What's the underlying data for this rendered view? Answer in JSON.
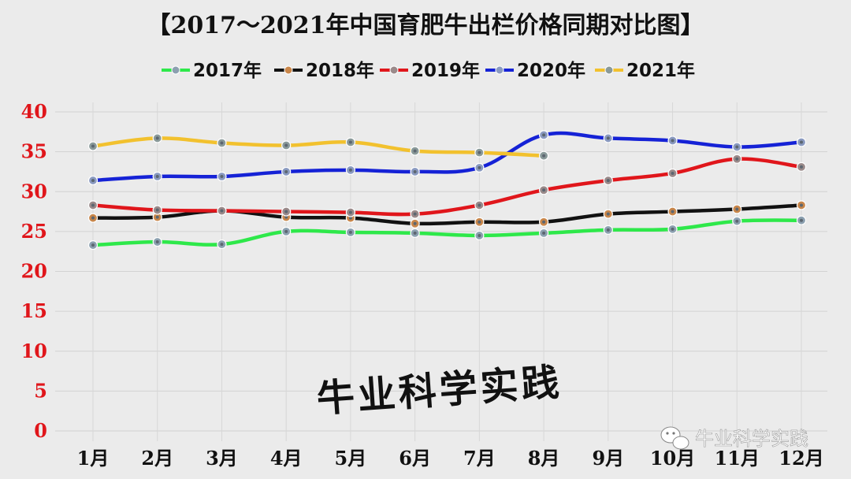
{
  "chart_data": {
    "type": "line",
    "title": "【2017～2021年中国育肥牛出栏价格同期对比图】",
    "categories": [
      "1月",
      "2月",
      "3月",
      "4月",
      "5月",
      "6月",
      "7月",
      "8月",
      "9月",
      "10月",
      "11月",
      "12月"
    ],
    "ylim": [
      0,
      40
    ],
    "yticks": [
      0,
      5,
      10,
      15,
      20,
      25,
      30,
      35,
      40
    ],
    "grid": "both",
    "legend_position": "top-center",
    "series": [
      {
        "name": "2017年",
        "color": "#2ee84a",
        "marker": "#8ca0b0",
        "values": [
          23.3,
          23.7,
          23.4,
          25.0,
          24.9,
          24.8,
          24.5,
          24.8,
          25.2,
          25.3,
          26.3,
          26.4
        ]
      },
      {
        "name": "2018年",
        "color": "#111111",
        "marker": "#c8864a",
        "values": [
          26.7,
          26.8,
          27.6,
          26.8,
          26.7,
          26.0,
          26.2,
          26.2,
          27.2,
          27.5,
          27.8,
          28.3
        ]
      },
      {
        "name": "2019年",
        "color": "#e0161b",
        "marker": "#9a8a8a",
        "values": [
          28.3,
          27.7,
          27.6,
          27.5,
          27.4,
          27.2,
          28.3,
          30.2,
          31.4,
          32.3,
          34.1,
          33.1
        ]
      },
      {
        "name": "2020年",
        "color": "#1522d6",
        "marker": "#8a9ac0",
        "values": [
          31.4,
          31.9,
          31.9,
          32.5,
          32.7,
          32.5,
          33.0,
          37.1,
          36.7,
          36.4,
          35.6,
          36.2
        ]
      },
      {
        "name": "2021年",
        "color": "#f2c12e",
        "marker": "#8a9a9a",
        "values": [
          35.7,
          36.7,
          36.1,
          35.8,
          36.2,
          35.1,
          34.9,
          34.5,
          null,
          null,
          null,
          null
        ]
      }
    ]
  },
  "overlay_text": "牛业科学实践",
  "watermark": {
    "text": "牛业科学实践",
    "icon": "wechat-icon"
  }
}
